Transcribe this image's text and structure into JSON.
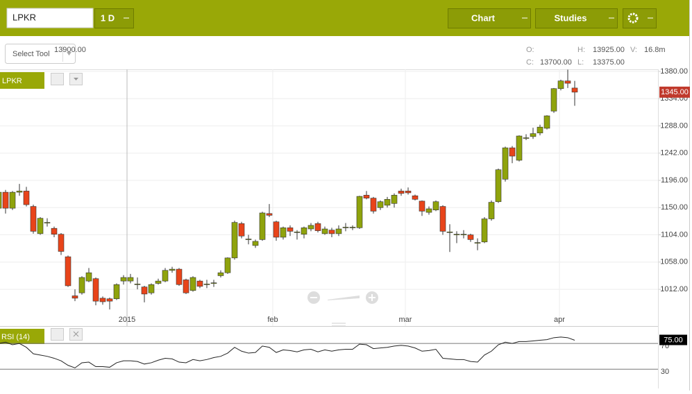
{
  "toolbar": {
    "symbol": "LPKR",
    "interval": "1 D",
    "chart_button": "Chart",
    "studies_button": "Studies"
  },
  "select_tool": "Select Tool",
  "ohlc": {
    "o_label": "O:",
    "o_value": "13900.00",
    "h_label": "H:",
    "h_value": "13925.00",
    "v_label": "V:",
    "v_value": "16.8m",
    "c_label": "C:",
    "c_value": "13700.00",
    "l_label": "L:",
    "l_value": "13375.00"
  },
  "chart": {
    "type": "candlestick",
    "label": "LPKR",
    "ylim": [
      950,
      1383.5
    ],
    "yticks": [
      {
        "value": 1380,
        "label": "1380.00"
      },
      {
        "value": 1334,
        "label": "1334.00"
      },
      {
        "value": 1288,
        "label": "1288.00"
      },
      {
        "value": 1242,
        "label": "1242.00"
      },
      {
        "value": 1196,
        "label": "1196.00"
      },
      {
        "value": 1150,
        "label": "1150.00"
      },
      {
        "value": 1104,
        "label": "1104.00"
      },
      {
        "value": 1058,
        "label": "1058.00"
      },
      {
        "value": 1012,
        "label": "1012.00"
      }
    ],
    "current_price": {
      "value": 1345,
      "label": "1345.00"
    },
    "x_labels": [
      {
        "at_candle": 18.5,
        "label": "2015"
      },
      {
        "at_candle": 39.5,
        "label": "feb"
      },
      {
        "at_candle": 58.6,
        "label": "mar"
      },
      {
        "at_candle": 80.8,
        "label": "apr"
      }
    ],
    "up_color": "#8fa30c",
    "down_color": "#e8441a",
    "grid": true,
    "candles": {
      "open": [
        1149,
        1176,
        1149,
        1176,
        1178,
        1152,
        1106,
        1124,
        1115,
        1105,
        1067,
        1001,
        1006,
        1026,
        1030,
        997,
        996,
        996,
        1026,
        1026,
        1020,
        1016,
        1006,
        1022,
        1026,
        1044,
        1046,
        1028,
        1010,
        1026,
        1020,
        1022,
        1035,
        1040,
        1065,
        1123,
        1096,
        1086,
        1096,
        1140,
        1126,
        1100,
        1116,
        1108,
        1105,
        1114,
        1123,
        1106,
        1112,
        1106,
        1116,
        1116,
        1116,
        1171,
        1166,
        1150,
        1154,
        1157,
        1178,
        1178,
        1170,
        1161,
        1142,
        1146,
        1152,
        1108,
        1104,
        1104,
        1104,
        1090,
        1092,
        1131,
        1160,
        1198,
        1251,
        1230,
        1267,
        1270,
        1276,
        1284,
        1313,
        1351,
        1364,
        1352
      ],
      "high": [
        1180,
        1180,
        1178,
        1190,
        1185,
        1155,
        1134,
        1132,
        1118,
        1107,
        1069,
        1012,
        1034,
        1048,
        1032,
        1000,
        998,
        1022,
        1036,
        1038,
        1032,
        1018,
        1022,
        1030,
        1048,
        1050,
        1048,
        1030,
        1034,
        1028,
        1028,
        1028,
        1044,
        1066,
        1128,
        1126,
        1104,
        1096,
        1143,
        1156,
        1128,
        1118,
        1120,
        1112,
        1118,
        1124,
        1126,
        1118,
        1116,
        1120,
        1124,
        1120,
        1170,
        1178,
        1168,
        1162,
        1168,
        1174,
        1182,
        1184,
        1172,
        1162,
        1152,
        1162,
        1154,
        1122,
        1110,
        1112,
        1106,
        1098,
        1134,
        1162,
        1216,
        1253,
        1254,
        1272,
        1274,
        1285,
        1290,
        1306,
        1352,
        1366,
        1383,
        1364
      ],
      "low": [
        1145,
        1140,
        1146,
        1170,
        1152,
        1106,
        1104,
        1118,
        1100,
        1070,
        1016,
        992,
        1003,
        1024,
        985,
        986,
        978,
        994,
        1020,
        1022,
        1012,
        990,
        1003,
        1020,
        1024,
        1040,
        1018,
        1004,
        1008,
        1014,
        1014,
        1016,
        1032,
        1038,
        1062,
        1098,
        1088,
        1082,
        1094,
        1134,
        1094,
        1096,
        1102,
        1096,
        1098,
        1110,
        1108,
        1104,
        1100,
        1102,
        1110,
        1112,
        1114,
        1164,
        1140,
        1146,
        1150,
        1150,
        1170,
        1172,
        1162,
        1136,
        1138,
        1144,
        1104,
        1075,
        1090,
        1098,
        1092,
        1078,
        1090,
        1128,
        1158,
        1194,
        1225,
        1228,
        1264,
        1266,
        1272,
        1282,
        1310,
        1348,
        1352,
        1322
      ],
      "close": [
        1176,
        1149,
        1176,
        1178,
        1155,
        1110,
        1132,
        1125,
        1105,
        1076,
        1018,
        997,
        1032,
        1040,
        992,
        991,
        992,
        1020,
        1032,
        1032,
        1021,
        1004,
        1020,
        1026,
        1044,
        1046,
        1020,
        1006,
        1032,
        1017,
        1021,
        1023,
        1040,
        1065,
        1125,
        1102,
        1097,
        1093,
        1141,
        1137,
        1100,
        1116,
        1110,
        1109,
        1116,
        1120,
        1111,
        1114,
        1106,
        1114,
        1117,
        1117,
        1169,
        1166,
        1144,
        1160,
        1164,
        1171,
        1174,
        1175,
        1164,
        1144,
        1148,
        1160,
        1110,
        1109,
        1105,
        1105,
        1096,
        1091,
        1131,
        1159,
        1214,
        1251,
        1237,
        1271,
        1268,
        1275,
        1286,
        1305,
        1351,
        1364,
        1360,
        1345
      ]
    }
  },
  "rsi": {
    "type": "line",
    "label": "RSI (14)",
    "ylim": [
      0,
      95
    ],
    "yticks": [
      70,
      30
    ],
    "color": "#222222",
    "current": {
      "value": 75,
      "label": "75.00"
    },
    "values": [
      70,
      72,
      68,
      70,
      64,
      54,
      52,
      50,
      47,
      43,
      36,
      32,
      40,
      41,
      34,
      34,
      33,
      40,
      43,
      43,
      42,
      38,
      40,
      44,
      47,
      46,
      41,
      40,
      45,
      43,
      45,
      48,
      50,
      55,
      64,
      58,
      55,
      56,
      66,
      64,
      56,
      60,
      59,
      57,
      60,
      61,
      57,
      60,
      58,
      60,
      61,
      61,
      69,
      68,
      62,
      63,
      64,
      66,
      67,
      66,
      63,
      58,
      59,
      61,
      47,
      46,
      45,
      45,
      42,
      41,
      52,
      58,
      68,
      72,
      70,
      73,
      73,
      74,
      75,
      76,
      79,
      80,
      79,
      75
    ]
  }
}
